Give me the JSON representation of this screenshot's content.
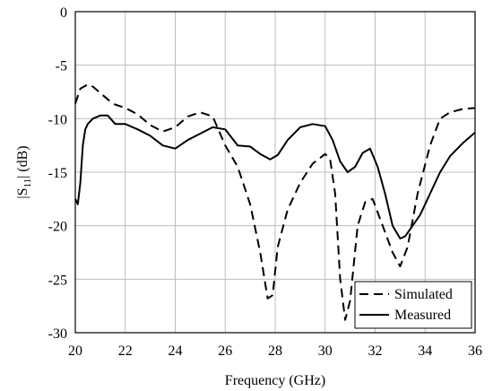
{
  "chart_data": {
    "type": "line",
    "xlabel": "Frequency (GHz)",
    "ylabel": "|S11| (dB)",
    "ylabel_main": "|S",
    "ylabel_sub": "11",
    "ylabel_tail": "| (dB)",
    "xlim": [
      20,
      36
    ],
    "ylim": [
      -30,
      0
    ],
    "xticks": [
      20,
      22,
      24,
      26,
      28,
      30,
      32,
      34,
      36
    ],
    "yticks": [
      0,
      -5,
      -10,
      -15,
      -20,
      -25,
      -30
    ],
    "grid": true,
    "legend_position": "bottom-right",
    "series": [
      {
        "name": "Simulated",
        "style": "dashed",
        "color": "#000000",
        "x": [
          20.0,
          20.2,
          20.5,
          20.7,
          21.0,
          21.5,
          22.0,
          22.5,
          23.0,
          23.5,
          24.0,
          24.5,
          25.0,
          25.5,
          26.0,
          26.5,
          27.0,
          27.4,
          27.7,
          27.9,
          28.1,
          28.5,
          29.0,
          29.5,
          30.0,
          30.2,
          30.4,
          30.6,
          30.8,
          31.0,
          31.3,
          31.6,
          31.9,
          32.3,
          32.7,
          33.0,
          33.3,
          33.7,
          34.2,
          34.6,
          35.0,
          35.5,
          36.0
        ],
        "y": [
          -8.6,
          -7.2,
          -6.8,
          -7.0,
          -7.6,
          -8.6,
          -9.0,
          -9.6,
          -10.6,
          -11.2,
          -10.8,
          -9.8,
          -9.4,
          -9.8,
          -12.5,
          -14.5,
          -18.0,
          -22.5,
          -26.8,
          -26.5,
          -22.0,
          -18.5,
          -16.0,
          -14.2,
          -13.3,
          -13.8,
          -17.0,
          -25.0,
          -28.8,
          -27.0,
          -20.0,
          -17.8,
          -17.5,
          -20.0,
          -22.5,
          -23.8,
          -22.0,
          -17.0,
          -12.5,
          -10.0,
          -9.4,
          -9.1,
          -9.0
        ]
      },
      {
        "name": "Measured",
        "style": "solid",
        "color": "#000000",
        "x": [
          20.0,
          20.1,
          20.2,
          20.3,
          20.4,
          20.5,
          20.7,
          21.0,
          21.3,
          21.6,
          22.0,
          22.5,
          23.0,
          23.5,
          24.0,
          24.5,
          25.0,
          25.5,
          26.0,
          26.5,
          27.0,
          27.4,
          27.8,
          28.1,
          28.5,
          29.0,
          29.5,
          30.0,
          30.3,
          30.6,
          30.9,
          31.2,
          31.5,
          31.8,
          32.1,
          32.4,
          32.7,
          33.0,
          33.2,
          33.5,
          33.8,
          34.2,
          34.6,
          35.0,
          35.5,
          36.0
        ],
        "y": [
          -17.5,
          -18.0,
          -16.0,
          -12.5,
          -11.0,
          -10.5,
          -10.0,
          -9.7,
          -9.7,
          -10.5,
          -10.5,
          -11.0,
          -11.6,
          -12.5,
          -12.8,
          -12.0,
          -11.4,
          -10.8,
          -11.0,
          -12.5,
          -12.6,
          -13.3,
          -13.8,
          -13.4,
          -12.0,
          -10.8,
          -10.5,
          -10.7,
          -12.0,
          -14.0,
          -15.0,
          -14.5,
          -13.2,
          -12.8,
          -14.5,
          -17.0,
          -20.0,
          -21.2,
          -21.0,
          -20.0,
          -19.0,
          -17.0,
          -15.0,
          -13.5,
          -12.3,
          -11.3
        ]
      }
    ]
  }
}
